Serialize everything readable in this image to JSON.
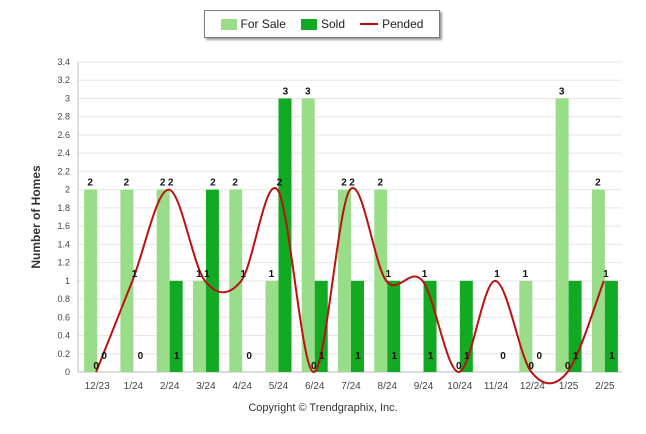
{
  "legend": {
    "items": [
      {
        "label": "For Sale",
        "color": "#99dd88",
        "kind": "box"
      },
      {
        "label": "Sold",
        "color": "#11aa22",
        "kind": "box"
      },
      {
        "label": "Pended",
        "color": "#bb1111",
        "kind": "line"
      }
    ]
  },
  "copyright": "Copyright © Trendgraphix, Inc.",
  "chart_data": {
    "type": "bar",
    "ylabel": "Number of Homes",
    "xlabel": "",
    "ylim": [
      0,
      3.4
    ],
    "yticks": [
      "0",
      "0.2",
      "0.4",
      "0.6",
      "0.8",
      "1",
      "1.2",
      "1.4",
      "1.6",
      "1.8",
      "2",
      "2.2",
      "2.4",
      "2.6",
      "2.8",
      "3",
      "3.2",
      "3.4"
    ],
    "grid": true,
    "legend_position": "top-center",
    "categories": [
      "12/23",
      "1/24",
      "2/24",
      "3/24",
      "4/24",
      "5/24",
      "6/24",
      "7/24",
      "8/24",
      "9/24",
      "10/24",
      "11/24",
      "12/24",
      "1/25",
      "2/25"
    ],
    "series": [
      {
        "name": "For Sale",
        "kind": "bar",
        "color": "#99dd88",
        "values": [
          2,
          2,
          2,
          1,
          2,
          1,
          3,
          2,
          2,
          0,
          0,
          0,
          1,
          3,
          2
        ]
      },
      {
        "name": "Sold",
        "kind": "bar",
        "color": "#11aa22",
        "values": [
          0,
          0,
          1,
          2,
          0,
          3,
          1,
          1,
          1,
          1,
          1,
          0,
          0,
          1,
          1
        ]
      },
      {
        "name": "Pended",
        "kind": "line",
        "color": "#bb1111",
        "values": [
          0,
          1,
          2,
          1,
          1,
          2,
          0,
          2,
          1,
          1,
          0,
          1,
          0,
          0,
          1
        ]
      }
    ]
  }
}
